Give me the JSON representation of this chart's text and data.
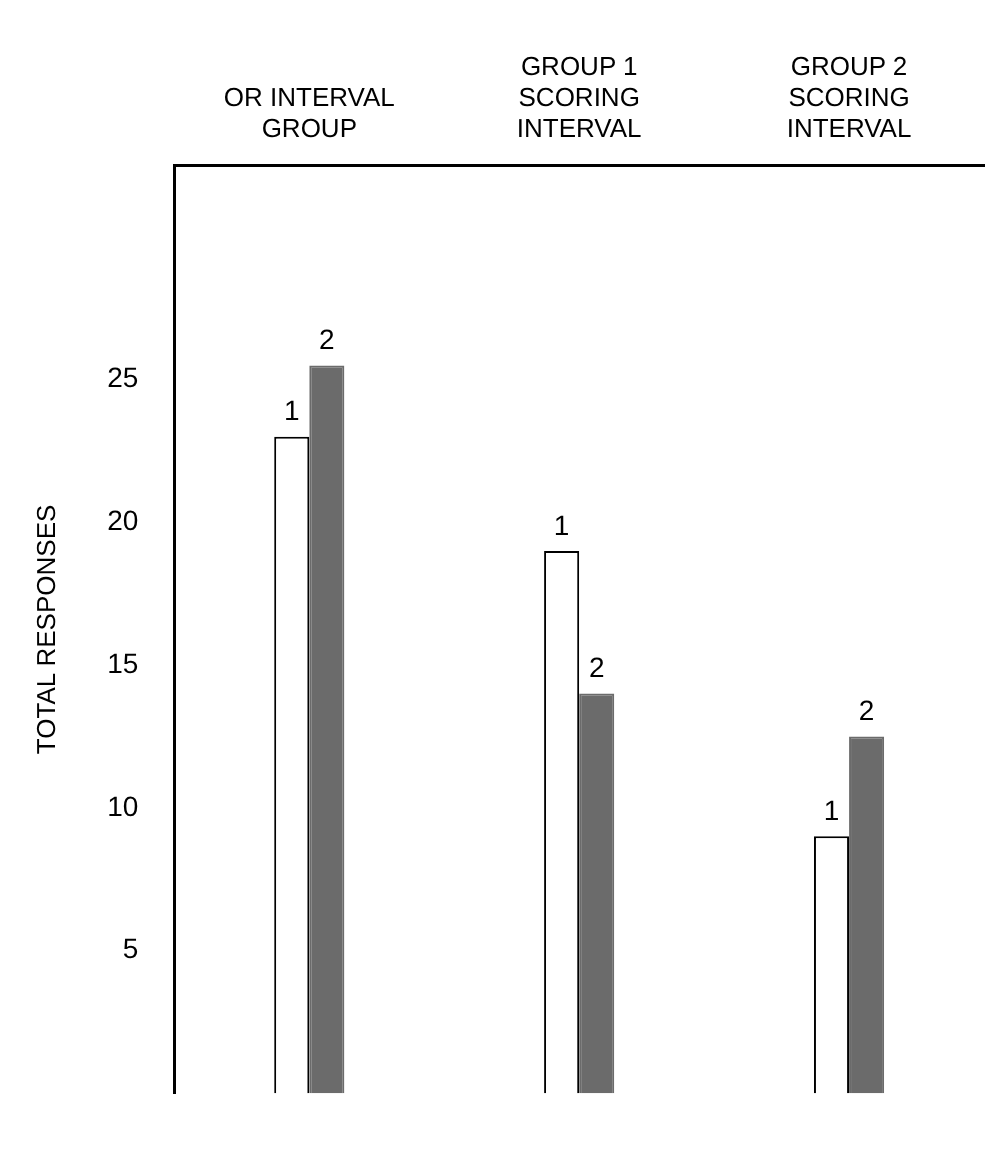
{
  "chart_data": {
    "type": "bar",
    "ylabel": "TOTAL RESPONSES",
    "categories": [
      "OR INTERVAL GROUP",
      "GROUP 1 SCORING INTERVAL",
      "GROUP 2 SCORING INTERVAL"
    ],
    "series": [
      {
        "name": "1",
        "color": "#ffffff",
        "values": [
          23,
          19,
          9
        ]
      },
      {
        "name": "2",
        "color": "#6b6b6b",
        "values": [
          25.5,
          14,
          12.5
        ]
      }
    ],
    "ylim": [
      0,
      32.5
    ],
    "yticks": [
      5,
      10,
      15,
      20,
      25
    ],
    "grid": false
  }
}
